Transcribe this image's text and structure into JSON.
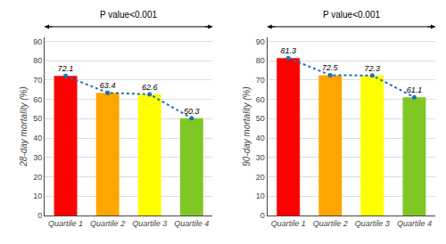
{
  "chart_data": [
    {
      "type": "bar",
      "categories": [
        "Quartile 1",
        "Quartile 2",
        "Quartile 3",
        "Quartile 4"
      ],
      "series": [
        {
          "type": "bar",
          "colors": [
            "#ff0000",
            "#ffa500",
            "#ffff00",
            "#7fc724"
          ],
          "values": [
            72.1,
            63.4,
            62.6,
            50.3
          ],
          "data_labels": true
        },
        {
          "type": "line",
          "color": "#1f6fbe",
          "line_style": "dotted",
          "marker": "circle",
          "values": [
            72.1,
            63.4,
            62.6,
            50.3
          ]
        }
      ],
      "ylabel": "28-day mortality (%)",
      "annotation": "P value<0.001",
      "ylim": [
        0,
        92
      ],
      "yticks": [
        0,
        10,
        20,
        30,
        40,
        50,
        60,
        70,
        80,
        90
      ],
      "grid": true
    },
    {
      "type": "bar",
      "categories": [
        "Quartile 1",
        "Quartile 2",
        "Quartile 3",
        "Quartile 4"
      ],
      "series": [
        {
          "type": "bar",
          "colors": [
            "#ff0000",
            "#ffa500",
            "#ffff00",
            "#7fc724"
          ],
          "values": [
            81.3,
            72.5,
            72.3,
            61.1
          ],
          "data_labels": true
        },
        {
          "type": "line",
          "color": "#1f6fbe",
          "line_style": "dotted",
          "marker": "circle",
          "values": [
            81.3,
            72.5,
            72.3,
            61.1
          ]
        }
      ],
      "ylabel": "90-day mortality (%)",
      "annotation": "P value<0.001",
      "ylim": [
        0,
        92
      ],
      "yticks": [
        0,
        10,
        20,
        30,
        40,
        50,
        60,
        70,
        80,
        90
      ],
      "grid": true
    }
  ]
}
